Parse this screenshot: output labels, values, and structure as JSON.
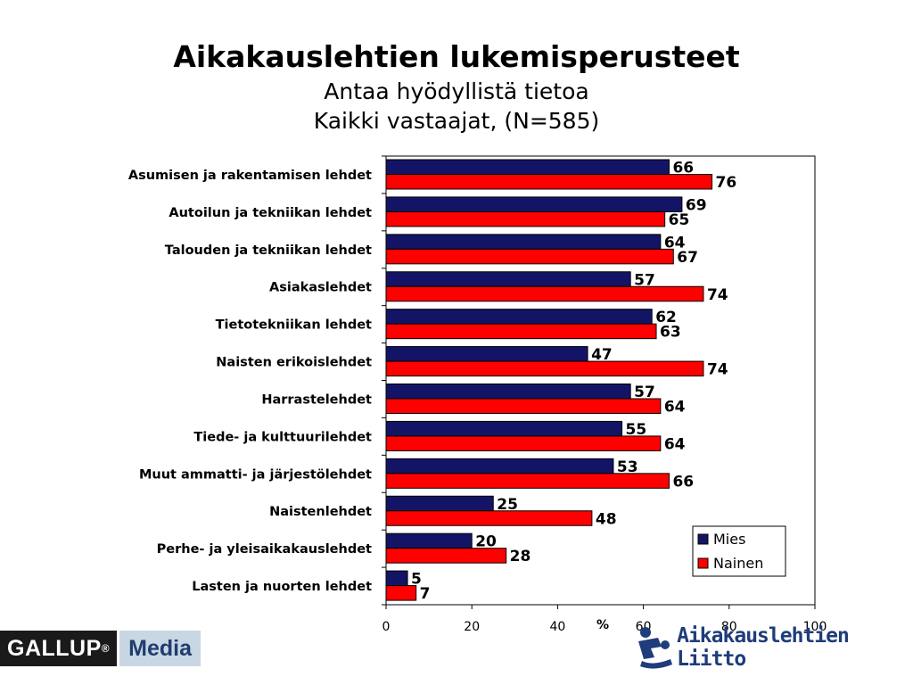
{
  "page": {
    "title": "Aikakauslehtien lukemisperusteet",
    "subtitle1": "Antaa hyödyllistä tietoa",
    "subtitle2": "Kaikki vastaajat, (N=585)"
  },
  "chart_data": {
    "type": "bar",
    "orientation": "horizontal",
    "categories": [
      "Asumisen ja rakentamisen lehdet",
      "Autoilun ja tekniikan lehdet",
      "Talouden ja tekniikan lehdet",
      "Asiakaslehdet",
      "Tietotekniikan lehdet",
      "Naisten erikoislehdet",
      "Harrastelehdet",
      "Tiede- ja kulttuurilehdet",
      "Muut ammatti- ja järjestölehdet",
      "Naistenlehdet",
      "Perhe- ja yleisaikakauslehdet",
      "Lasten ja nuorten lehdet"
    ],
    "series": [
      {
        "name": "Mies",
        "color": "#141466",
        "values": [
          66,
          69,
          64,
          57,
          62,
          47,
          57,
          55,
          53,
          25,
          20,
          5
        ]
      },
      {
        "name": "Nainen",
        "color": "#ff0000",
        "values": [
          76,
          65,
          67,
          74,
          63,
          74,
          64,
          64,
          66,
          48,
          28,
          7
        ]
      }
    ],
    "xlim": [
      0,
      100
    ],
    "xticks": [
      0,
      20,
      40,
      60,
      80,
      100
    ],
    "xlabel": "%",
    "legend_position": "bottom-right",
    "grid": false
  },
  "logos": {
    "gallup_text": "GALLUP",
    "gallup_mark": "®",
    "media_text": "Media",
    "liitto_text": "Aikakauslehtien Liitto"
  }
}
